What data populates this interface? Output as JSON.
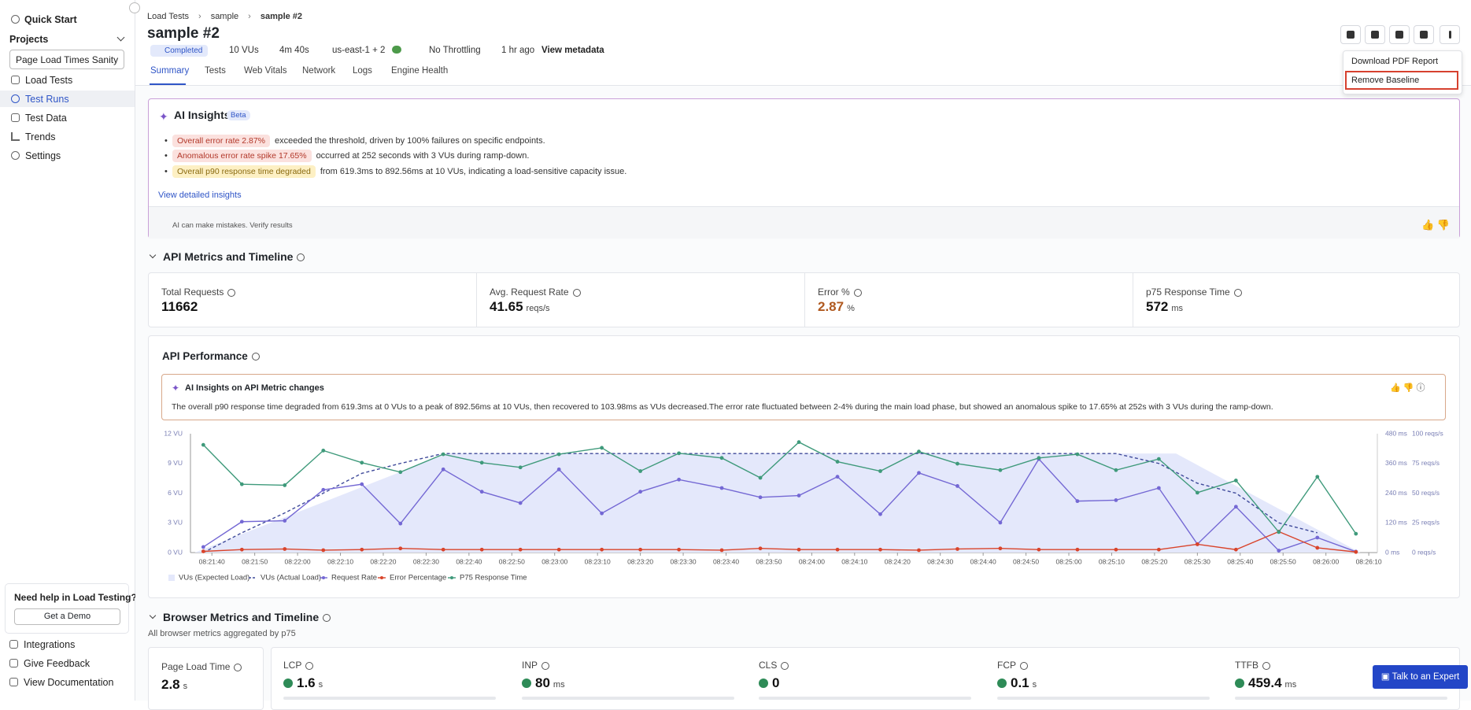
{
  "sidebar": {
    "quick_start": "Quick Start",
    "projects_label": "Projects",
    "project_select": "Page Load Times Sanity",
    "nav": [
      "Load Tests",
      "Test Runs",
      "Test Data",
      "Trends",
      "Settings"
    ],
    "help": {
      "title": "Need help in Load Testing?",
      "button": "Get a Demo"
    },
    "nav_bottom": [
      "Integrations",
      "Give Feedback",
      "View Documentation"
    ]
  },
  "header": {
    "breadcrumbs": [
      "Load Tests",
      "sample",
      "sample #2"
    ],
    "title": "sample #2",
    "status": "Completed",
    "meta": [
      "10 VUs",
      "4m 40s",
      "us-east-1 + 2",
      "No Throttling",
      "1 hr ago"
    ],
    "view_metadata": "View metadata"
  },
  "menu": [
    "Download PDF Report",
    "Remove Baseline"
  ],
  "tabs": [
    "Summary",
    "Tests",
    "Web Vitals",
    "Network",
    "Logs",
    "Engine Health"
  ],
  "ai_insights": {
    "title": "AI Insights",
    "badge": "Beta",
    "items": [
      {
        "chip": "Overall error rate 2.87%",
        "text": "exceeded the threshold, driven by 100% failures on specific endpoints."
      },
      {
        "chip": "Anomalous error rate spike 17.65%",
        "text": "occurred at 252 seconds with 3 VUs during ramp-down."
      },
      {
        "chip": "Overall p90 response time degraded",
        "text": "from 619.3ms to 892.56ms at 10 VUs, indicating a load-sensitive capacity issue."
      }
    ],
    "link": "View detailed insights",
    "disclaimer": "AI can make mistakes. Verify results"
  },
  "api_section": {
    "title": "API Metrics and Timeline",
    "cards": [
      {
        "label": "Total Requests",
        "value": "11662"
      },
      {
        "label": "Avg. Request Rate",
        "value": "41.65",
        "unit": "reqs/s"
      },
      {
        "label": "Error %",
        "value": "2.87",
        "unit": "%"
      },
      {
        "label": "p75 Response Time",
        "value": "572",
        "unit": "ms"
      }
    ]
  },
  "api_performance": {
    "title": "API Performance",
    "insight_title": "AI Insights on API Metric changes",
    "insight_text": "The overall p90 response time degraded from 619.3ms at 0 VUs to a peak of 892.56ms at 10 VUs, then recovered to 103.98ms as VUs decreased.The error rate fluctuated between 2-4% during the main load phase, but showed an anomalous spike to 17.65% at 252s with 3 VUs during the ramp-down."
  },
  "chart_data": {
    "type": "line",
    "xlim": [
      30095,
      30372
    ],
    "xticks": [
      {
        "value": 30100,
        "label": "08:21:40"
      },
      {
        "value": 30110,
        "label": "08:21:50"
      },
      {
        "value": 30120,
        "label": "08:22:00"
      },
      {
        "value": 30130,
        "label": "08:22:10"
      },
      {
        "value": 30140,
        "label": "08:22:20"
      },
      {
        "value": 30150,
        "label": "08:22:30"
      },
      {
        "value": 30160,
        "label": "08:22:40"
      },
      {
        "value": 30170,
        "label": "08:22:50"
      },
      {
        "value": 30180,
        "label": "08:23:00"
      },
      {
        "value": 30190,
        "label": "08:23:10"
      },
      {
        "value": 30200,
        "label": "08:23:20"
      },
      {
        "value": 30210,
        "label": "08:23:30"
      },
      {
        "value": 30220,
        "label": "08:23:40"
      },
      {
        "value": 30230,
        "label": "08:23:50"
      },
      {
        "value": 30240,
        "label": "08:24:00"
      },
      {
        "value": 30250,
        "label": "08:24:10"
      },
      {
        "value": 30260,
        "label": "08:24:20"
      },
      {
        "value": 30270,
        "label": "08:24:30"
      },
      {
        "value": 30280,
        "label": "08:24:40"
      },
      {
        "value": 30290,
        "label": "08:24:50"
      },
      {
        "value": 30300,
        "label": "08:25:00"
      },
      {
        "value": 30310,
        "label": "08:25:10"
      },
      {
        "value": 30320,
        "label": "08:25:20"
      },
      {
        "value": 30330,
        "label": "08:25:30"
      },
      {
        "value": 30340,
        "label": "08:25:40"
      },
      {
        "value": 30350,
        "label": "08:25:50"
      },
      {
        "value": 30360,
        "label": "08:26:00"
      },
      {
        "value": 30370,
        "label": "08:26:10"
      }
    ],
    "ylim": [
      0,
      12
    ],
    "yticks": [
      {
        "value": 0,
        "label": "0 VU"
      },
      {
        "value": 3,
        "label": "3 VU"
      },
      {
        "value": 6,
        "label": "6 VU"
      },
      {
        "value": 9,
        "label": "9 VU"
      },
      {
        "value": 12,
        "label": "12 VU"
      }
    ],
    "y2lim": [
      0,
      480
    ],
    "y2ticks": [
      {
        "value": 0,
        "label": "0 ms"
      },
      {
        "value": 120,
        "label": "120 ms"
      },
      {
        "value": 240,
        "label": "240 ms"
      },
      {
        "value": 360,
        "label": "360 ms"
      },
      {
        "value": 480,
        "label": "480 ms"
      }
    ],
    "y3lim": [
      0,
      100
    ],
    "y3ticks": [
      {
        "value": 0,
        "label": "0 reqs/s"
      },
      {
        "value": 25,
        "label": "25 reqs/s"
      },
      {
        "value": 50,
        "label": "50 reqs/s"
      },
      {
        "value": 75,
        "label": "75 reqs/s"
      },
      {
        "value": 100,
        "label": "100 reqs/s"
      }
    ],
    "grid": false,
    "x": [
      30098,
      30107,
      30117,
      30126,
      30135,
      30144,
      30154,
      30163,
      30172,
      30181,
      30191,
      30200,
      30209,
      30219,
      30228,
      30237,
      30246,
      30256,
      30265,
      30274,
      30284,
      30293,
      30302,
      30311,
      30321,
      30330,
      30339,
      30349,
      30358,
      30367
    ],
    "series": [
      {
        "name": "VUs (Expected Load)",
        "color": "#e4e8fb",
        "fill": true,
        "x": [
          30096,
          30155,
          30325,
          30368
        ],
        "values": [
          0,
          10,
          10,
          0
        ]
      },
      {
        "name": "VUs (Actual Load)",
        "color": "#3f4a9a",
        "dashed": true,
        "values": [
          0,
          2,
          4,
          6,
          8,
          9,
          10,
          10,
          10,
          10,
          10,
          10,
          10,
          10,
          10,
          10,
          10,
          10,
          10,
          10,
          10,
          10,
          10,
          10,
          9,
          7,
          6,
          3,
          2,
          null
        ]
      },
      {
        "name": "Request Rate",
        "color": "#7468d4",
        "axis": "y3",
        "markers": true,
        "values": [
          4.7,
          26,
          26.8,
          52.8,
          57.5,
          24.4,
          70,
          51.2,
          41.7,
          70,
          33,
          51.2,
          61.4,
          54.3,
          46.5,
          48,
          63.8,
          32.3,
          67,
          56,
          25.2,
          78.7,
          43.3,
          44.1,
          54.3,
          7.1,
          38.6,
          1.6,
          12.6,
          0.8
        ]
      },
      {
        "name": "Error Percentage",
        "color": "#d9442b",
        "axis": "y3",
        "markers": true,
        "values": [
          1,
          2.5,
          3,
          2,
          2.5,
          3.5,
          2.5,
          2.5,
          2.5,
          2.5,
          2.5,
          2.5,
          2.5,
          2,
          3.5,
          2.5,
          2.5,
          2.5,
          2,
          3,
          3.5,
          2.5,
          2.5,
          2.5,
          2.5,
          7,
          2.5,
          17.65,
          4,
          0.5
        ]
      },
      {
        "name": "P75 Response Time",
        "color": "#3f9a7b",
        "axis": "y2",
        "markers": true,
        "values": [
          435,
          276,
          272,
          412,
          363,
          325,
          397,
          363,
          344,
          397,
          423,
          329,
          401,
          382,
          302,
          446,
          367,
          329,
          408,
          359,
          333,
          382,
          397,
          333,
          378,
          242,
          291,
          83,
          306,
          76
        ]
      }
    ]
  },
  "browser_section": {
    "title": "Browser Metrics and Timeline",
    "subtitle": "All browser metrics aggregated by p75",
    "page_load": {
      "label": "Page Load Time",
      "value": "2.8",
      "unit": "s"
    },
    "vitals": [
      {
        "label": "LCP",
        "value": "1.6",
        "unit": "s"
      },
      {
        "label": "INP",
        "value": "80",
        "unit": "ms"
      },
      {
        "label": "CLS",
        "value": "0"
      },
      {
        "label": "FCP",
        "value": "0.1",
        "unit": "s"
      },
      {
        "label": "TTFB",
        "value": "459.4",
        "unit": "ms"
      }
    ]
  },
  "chat_button": "Talk to an Expert"
}
